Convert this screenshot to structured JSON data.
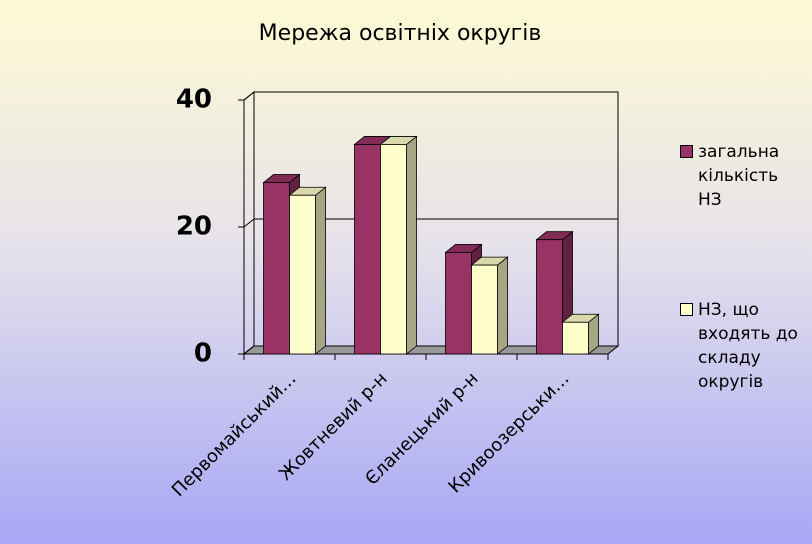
{
  "chart_data": {
    "type": "bar3d",
    "title": "Мережа освітніх округів",
    "categories": [
      "Первомайський…",
      "Жовтневий р-н",
      "Єланецький р-н",
      "Кривоозерськи…"
    ],
    "series": [
      {
        "name": "загальна кількість НЗ",
        "color": "#993366",
        "values": [
          27,
          33,
          16,
          18
        ]
      },
      {
        "name": "НЗ, що входять до складу округів",
        "color": "#ffffcc",
        "values": [
          25,
          33,
          14,
          5
        ]
      }
    ],
    "ylim": [
      0,
      40
    ],
    "yticks": [
      0,
      20,
      40
    ],
    "grid": true,
    "legend": "right"
  }
}
